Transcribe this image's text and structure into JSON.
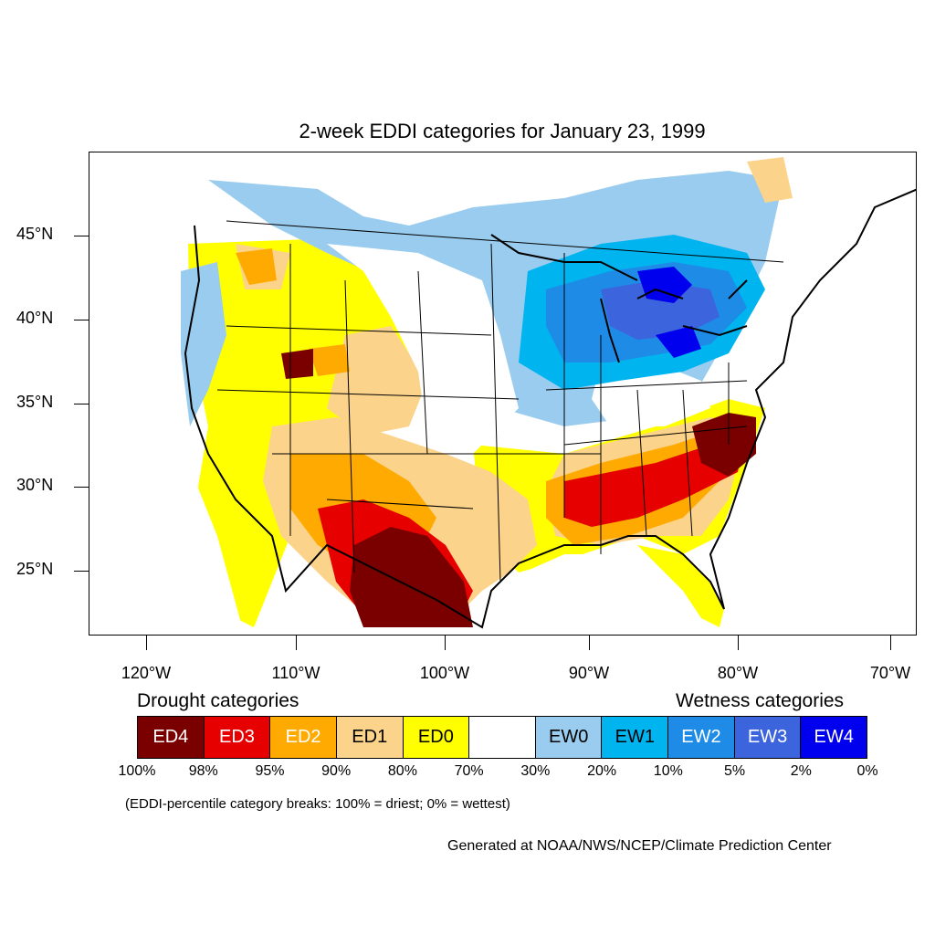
{
  "title": "2-week EDDI categories for January 23, 1999",
  "lat_labels": [
    "45°N",
    "40°N",
    "35°N",
    "30°N",
    "25°N"
  ],
  "lon_labels": [
    "120°W",
    "110°W",
    "100°W",
    "90°W",
    "80°W",
    "70°W"
  ],
  "legend": {
    "drought_heading": "Drought categories",
    "wetness_heading": "Wetness categories",
    "categories": [
      {
        "label": "ED4",
        "color": "#7a0000",
        "text_color": "#ffffff"
      },
      {
        "label": "ED3",
        "color": "#e60000",
        "text_color": "#ffffff"
      },
      {
        "label": "ED2",
        "color": "#ffaa00",
        "text_color": "#ffffff"
      },
      {
        "label": "ED1",
        "color": "#fcd38a",
        "text_color": "#000000"
      },
      {
        "label": "ED0",
        "color": "#ffff00",
        "text_color": "#000000"
      },
      {
        "label": "",
        "color": "#ffffff",
        "text_color": "#000000"
      },
      {
        "label": "EW0",
        "color": "#99ccee",
        "text_color": "#000000"
      },
      {
        "label": "EW1",
        "color": "#00b4f0",
        "text_color": "#000000"
      },
      {
        "label": "EW2",
        "color": "#1e8ce6",
        "text_color": "#ffffff"
      },
      {
        "label": "EW3",
        "color": "#3c64dc",
        "text_color": "#ffffff"
      },
      {
        "label": "EW4",
        "color": "#0000ee",
        "text_color": "#ffffff"
      }
    ],
    "breaks": [
      "100%",
      "98%",
      "95%",
      "90%",
      "80%",
      "70%",
      "30%",
      "20%",
      "10%",
      "5%",
      "2%",
      "0%"
    ]
  },
  "note": "(EDDI-percentile category breaks: 100% = driest; 0% = wettest)",
  "credit": "Generated at NOAA/NWS/NCEP/Climate Prediction Center"
}
